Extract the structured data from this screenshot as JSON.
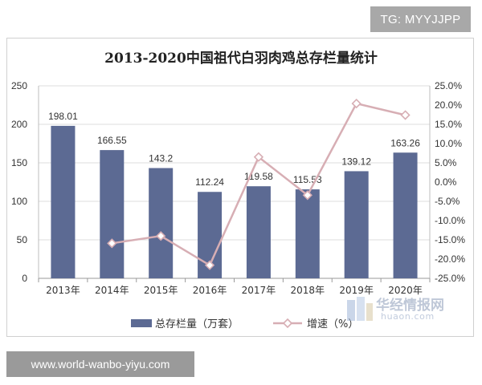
{
  "badges": {
    "tg": "TG: MYYJJPP",
    "url": "www.world-wanbo-yiyu.com"
  },
  "watermark": {
    "cn": "华经情报网",
    "en": "huaon.com"
  },
  "chart_data": {
    "type": "bar+line",
    "title": "2013-2020中国祖代白羽肉鸡总存栏量统计",
    "categories": [
      "2013年",
      "2014年",
      "2015年",
      "2016年",
      "2017年",
      "2018年",
      "2019年",
      "2020年"
    ],
    "series": [
      {
        "name": "总存栏量（万套）",
        "type": "bar",
        "axis": "left",
        "values": [
          198.01,
          166.55,
          143.2,
          112.24,
          119.58,
          115.53,
          139.12,
          163.26
        ],
        "labels": [
          "198.01",
          "166.55",
          "143.2",
          "112.24",
          "119.58",
          "115.53",
          "139.12",
          "163.26"
        ],
        "color": "#5c6a93"
      },
      {
        "name": "增速（%）",
        "type": "line",
        "axis": "right",
        "values": [
          null,
          -15.9,
          -14.0,
          -21.6,
          6.5,
          -3.4,
          20.4,
          17.4
        ],
        "color": "#d7aeb4"
      }
    ],
    "y_left": {
      "ylim": [
        0,
        250
      ],
      "ticks": [
        "0",
        "50",
        "100",
        "150",
        "200",
        "250"
      ]
    },
    "y_right": {
      "ylim": [
        -25,
        25
      ],
      "ticks": [
        "-25.0%",
        "-20.0%",
        "-15.0%",
        "-10.0%",
        "-5.0%",
        "0.0%",
        "5.0%",
        "10.0%",
        "15.0%",
        "20.0%",
        "25.0%"
      ]
    },
    "grid": true,
    "legend_position": "bottom"
  }
}
